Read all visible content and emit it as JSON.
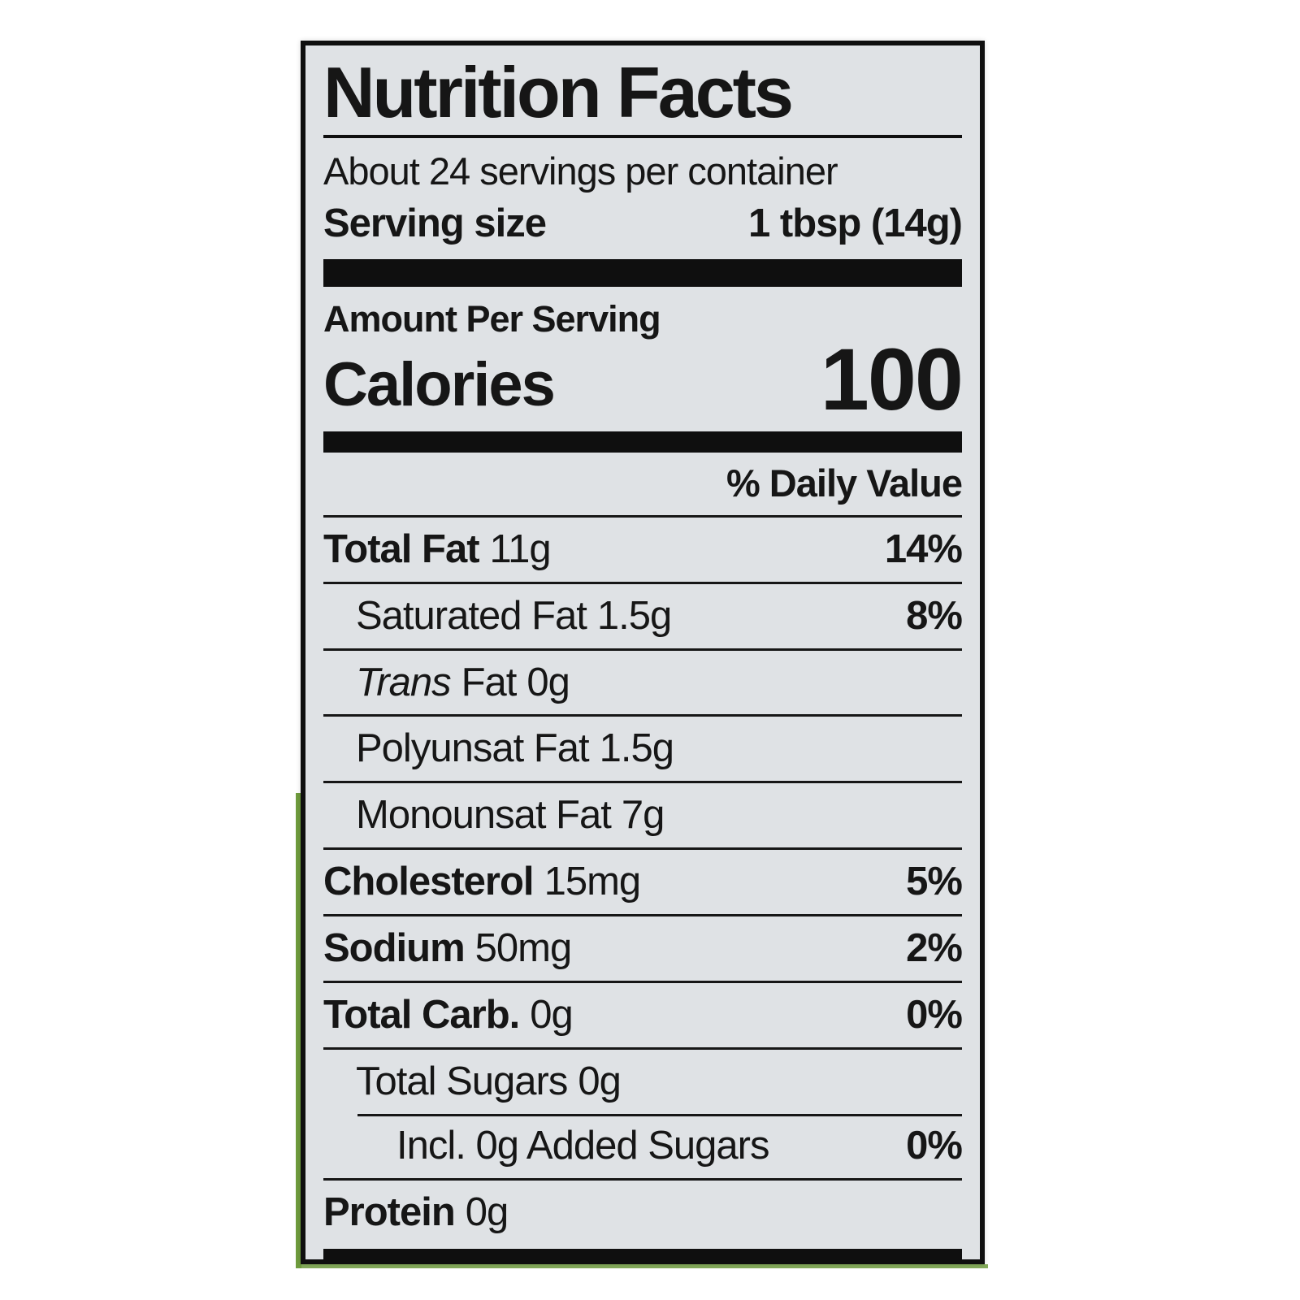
{
  "label": {
    "title": "Nutrition Facts",
    "servings_per_container": "About 24 servings per container",
    "serving_size_label": "Serving size",
    "serving_size_value": "1 tbsp (14g)",
    "amount_per_serving": "Amount Per Serving",
    "calories_label": "Calories",
    "calories_value": "100",
    "daily_value_header": "% Daily Value",
    "rows": [
      {
        "name": "Total Fat",
        "amount": "11g",
        "dv": "14%"
      },
      {
        "name": "Saturated Fat",
        "amount": "1.5g",
        "dv": "8%"
      },
      {
        "name_italic": "Trans",
        "name": "Fat",
        "amount": "0g",
        "dv": ""
      },
      {
        "name": "Polyunsat Fat",
        "amount": "1.5g",
        "dv": ""
      },
      {
        "name": "Monounsat Fat",
        "amount": "7g",
        "dv": ""
      },
      {
        "name": "Cholesterol",
        "amount": "15mg",
        "dv": "5%"
      },
      {
        "name": "Sodium",
        "amount": "50mg",
        "dv": "2%"
      },
      {
        "name": "Total Carb.",
        "amount": "0g",
        "dv": "0%"
      },
      {
        "name": "Total Sugars",
        "amount": "0g",
        "dv": ""
      },
      {
        "name": "Incl. 0g Added Sugars",
        "amount": "",
        "dv": "0%"
      },
      {
        "name": "Protein",
        "amount": "0g",
        "dv": ""
      }
    ],
    "colors": {
      "label_bg": "#dfe2e5",
      "text": "#161616",
      "bar": "#0f0f0f",
      "package_green": "#6f9c3e",
      "page_bg": "#ffffff"
    }
  }
}
